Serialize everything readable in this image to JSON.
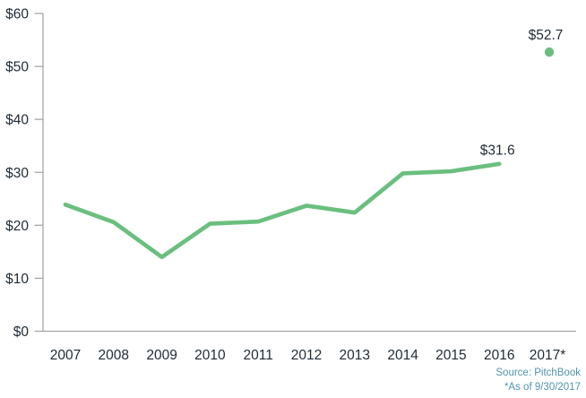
{
  "chart_data": {
    "type": "line",
    "title": "",
    "xlabel": "",
    "ylabel": "",
    "categories": [
      "2007",
      "2008",
      "2009",
      "2010",
      "2011",
      "2012",
      "2013",
      "2014",
      "2015",
      "2016",
      "2017*"
    ],
    "series": [
      {
        "values": [
          23.9,
          20.6,
          14.0,
          20.3,
          20.7,
          23.7,
          22.4,
          29.8,
          30.2,
          31.6
        ],
        "style": "solid-line"
      }
    ],
    "isolated_point": {
      "category": "2017*",
      "value": 52.7
    },
    "data_labels": [
      {
        "text": "$31.6",
        "index": 9,
        "value": 31.6
      },
      {
        "text": "$52.7",
        "index": 10,
        "value": 52.7
      }
    ],
    "y_ticks": [
      {
        "label": "$0",
        "value": 0
      },
      {
        "label": "$10",
        "value": 10
      },
      {
        "label": "$20",
        "value": 20
      },
      {
        "label": "$30",
        "value": 30
      },
      {
        "label": "$40",
        "value": 40
      },
      {
        "label": "$50",
        "value": 50
      },
      {
        "label": "$60",
        "value": 60
      }
    ],
    "ylim": [
      0,
      60
    ],
    "grid": "off",
    "legend": "none",
    "colors": {
      "line": "#6abf7e",
      "point": "#6abf7e",
      "axis": "#a6a6a6",
      "text": "#1f2a35",
      "source": "#4f93ac"
    }
  },
  "footer": {
    "source": "Source: PitchBook",
    "note": "*As of 9/30/2017"
  }
}
